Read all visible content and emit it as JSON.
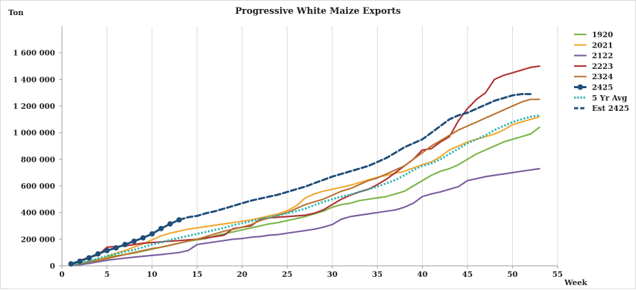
{
  "chart_data": {
    "type": "line",
    "title": "Progressive White Maize Exports",
    "ylabel": "Ton",
    "xlabel": "Week",
    "xlim": [
      0,
      55
    ],
    "ylim": [
      0,
      1800000
    ],
    "x_ticks": [
      0,
      5,
      10,
      15,
      20,
      25,
      30,
      35,
      40,
      45,
      50,
      55
    ],
    "y_ticks": [
      0,
      200000,
      400000,
      600000,
      800000,
      1000000,
      1200000,
      1400000,
      1600000
    ],
    "y_tick_labels": [
      "0",
      "200 000",
      "400 000",
      "600 000",
      "800 000",
      "1 000 000",
      "1 200 000",
      "1 400 000",
      "1 600 000"
    ],
    "grid": "vertical",
    "legend": "right",
    "series": [
      {
        "name": "1920",
        "color": "#7ab648",
        "style": "solid",
        "x_start": 1,
        "values": [
          5000,
          20000,
          35000,
          50000,
          65000,
          75000,
          85000,
          95000,
          110000,
          125000,
          140000,
          155000,
          170000,
          185000,
          195000,
          205000,
          225000,
          240000,
          255000,
          270000,
          285000,
          300000,
          315000,
          325000,
          340000,
          355000,
          370000,
          390000,
          410000,
          440000,
          460000,
          470000,
          490000,
          500000,
          510000,
          520000,
          540000,
          560000,
          600000,
          640000,
          680000,
          710000,
          730000,
          760000,
          800000,
          840000,
          870000,
          900000,
          930000,
          950000,
          970000,
          990000,
          1040000
        ]
      },
      {
        "name": "2021",
        "color": "#f0a830",
        "style": "solid",
        "x_start": 1,
        "values": [
          2000,
          10000,
          25000,
          45000,
          70000,
          95000,
          115000,
          140000,
          165000,
          195000,
          225000,
          245000,
          260000,
          275000,
          285000,
          295000,
          305000,
          315000,
          325000,
          335000,
          345000,
          360000,
          375000,
          390000,
          415000,
          450000,
          510000,
          540000,
          560000,
          575000,
          590000,
          605000,
          625000,
          645000,
          665000,
          680000,
          695000,
          710000,
          735000,
          760000,
          780000,
          820000,
          870000,
          900000,
          930000,
          950000,
          970000,
          990000,
          1020000,
          1060000,
          1080000,
          1100000,
          1120000
        ]
      },
      {
        "name": "2122",
        "color": "#7a5c9e",
        "style": "solid",
        "x_start": 1,
        "values": [
          2000,
          8000,
          18000,
          30000,
          42000,
          50000,
          58000,
          65000,
          72000,
          78000,
          85000,
          92000,
          100000,
          115000,
          160000,
          170000,
          180000,
          190000,
          200000,
          205000,
          215000,
          220000,
          230000,
          235000,
          245000,
          255000,
          265000,
          275000,
          290000,
          310000,
          350000,
          370000,
          380000,
          390000,
          400000,
          410000,
          420000,
          440000,
          470000,
          520000,
          540000,
          555000,
          575000,
          595000,
          640000,
          655000,
          670000,
          680000,
          690000,
          700000,
          710000,
          720000,
          730000
        ]
      },
      {
        "name": "2223",
        "color": "#b03030",
        "style": "solid",
        "x_start": 1,
        "values": [
          5000,
          40000,
          65000,
          80000,
          140000,
          145000,
          150000,
          160000,
          170000,
          175000,
          180000,
          185000,
          190000,
          195000,
          200000,
          210000,
          220000,
          230000,
          280000,
          290000,
          300000,
          350000,
          360000,
          365000,
          370000,
          375000,
          380000,
          395000,
          420000,
          460000,
          500000,
          530000,
          555000,
          575000,
          610000,
          650000,
          700000,
          750000,
          800000,
          870000,
          880000,
          930000,
          970000,
          1090000,
          1180000,
          1250000,
          1300000,
          1400000,
          1430000,
          1450000,
          1470000,
          1490000,
          1500000
        ]
      },
      {
        "name": "2324",
        "color": "#b87333",
        "style": "solid",
        "x_start": 1,
        "values": [
          3000,
          15000,
          28000,
          40000,
          55000,
          70000,
          85000,
          100000,
          115000,
          130000,
          140000,
          155000,
          170000,
          185000,
          200000,
          220000,
          240000,
          260000,
          275000,
          290000,
          310000,
          340000,
          360000,
          380000,
          400000,
          430000,
          460000,
          480000,
          500000,
          530000,
          560000,
          580000,
          610000,
          640000,
          660000,
          690000,
          720000,
          750000,
          800000,
          850000,
          900000,
          940000,
          980000,
          1020000,
          1050000,
          1080000,
          1110000,
          1140000,
          1170000,
          1200000,
          1230000,
          1250000,
          1250000
        ]
      },
      {
        "name": "2425",
        "color": "#1f4e79",
        "style": "marker",
        "x_start": 1,
        "values": [
          15000,
          35000,
          60000,
          90000,
          115000,
          135000,
          160000,
          185000,
          210000,
          240000,
          280000,
          315000,
          345000
        ]
      },
      {
        "name": "5 Yr Avg",
        "color": "#2bb5b0",
        "style": "dotted",
        "x_start": 1,
        "values": [
          3000,
          18000,
          35000,
          55000,
          75000,
          90000,
          105000,
          120000,
          140000,
          160000,
          175000,
          195000,
          210000,
          225000,
          240000,
          255000,
          270000,
          285000,
          305000,
          320000,
          335000,
          350000,
          365000,
          380000,
          395000,
          410000,
          430000,
          455000,
          480000,
          500000,
          520000,
          535000,
          555000,
          575000,
          595000,
          620000,
          645000,
          680000,
          720000,
          750000,
          770000,
          800000,
          840000,
          880000,
          920000,
          950000,
          980000,
          1020000,
          1050000,
          1080000,
          1100000,
          1120000,
          1130000
        ]
      },
      {
        "name": "Est 2425",
        "color": "#1f4e79",
        "style": "dashed",
        "x_start": 13,
        "values": [
          345000,
          365000,
          375000,
          395000,
          410000,
          430000,
          450000,
          470000,
          490000,
          505000,
          520000,
          535000,
          555000,
          575000,
          595000,
          620000,
          645000,
          670000,
          690000,
          710000,
          730000,
          750000,
          780000,
          810000,
          850000,
          890000,
          920000,
          950000,
          1000000,
          1050000,
          1100000,
          1130000,
          1150000,
          1180000,
          1210000,
          1240000,
          1260000,
          1280000,
          1290000,
          1290000
        ]
      }
    ]
  }
}
